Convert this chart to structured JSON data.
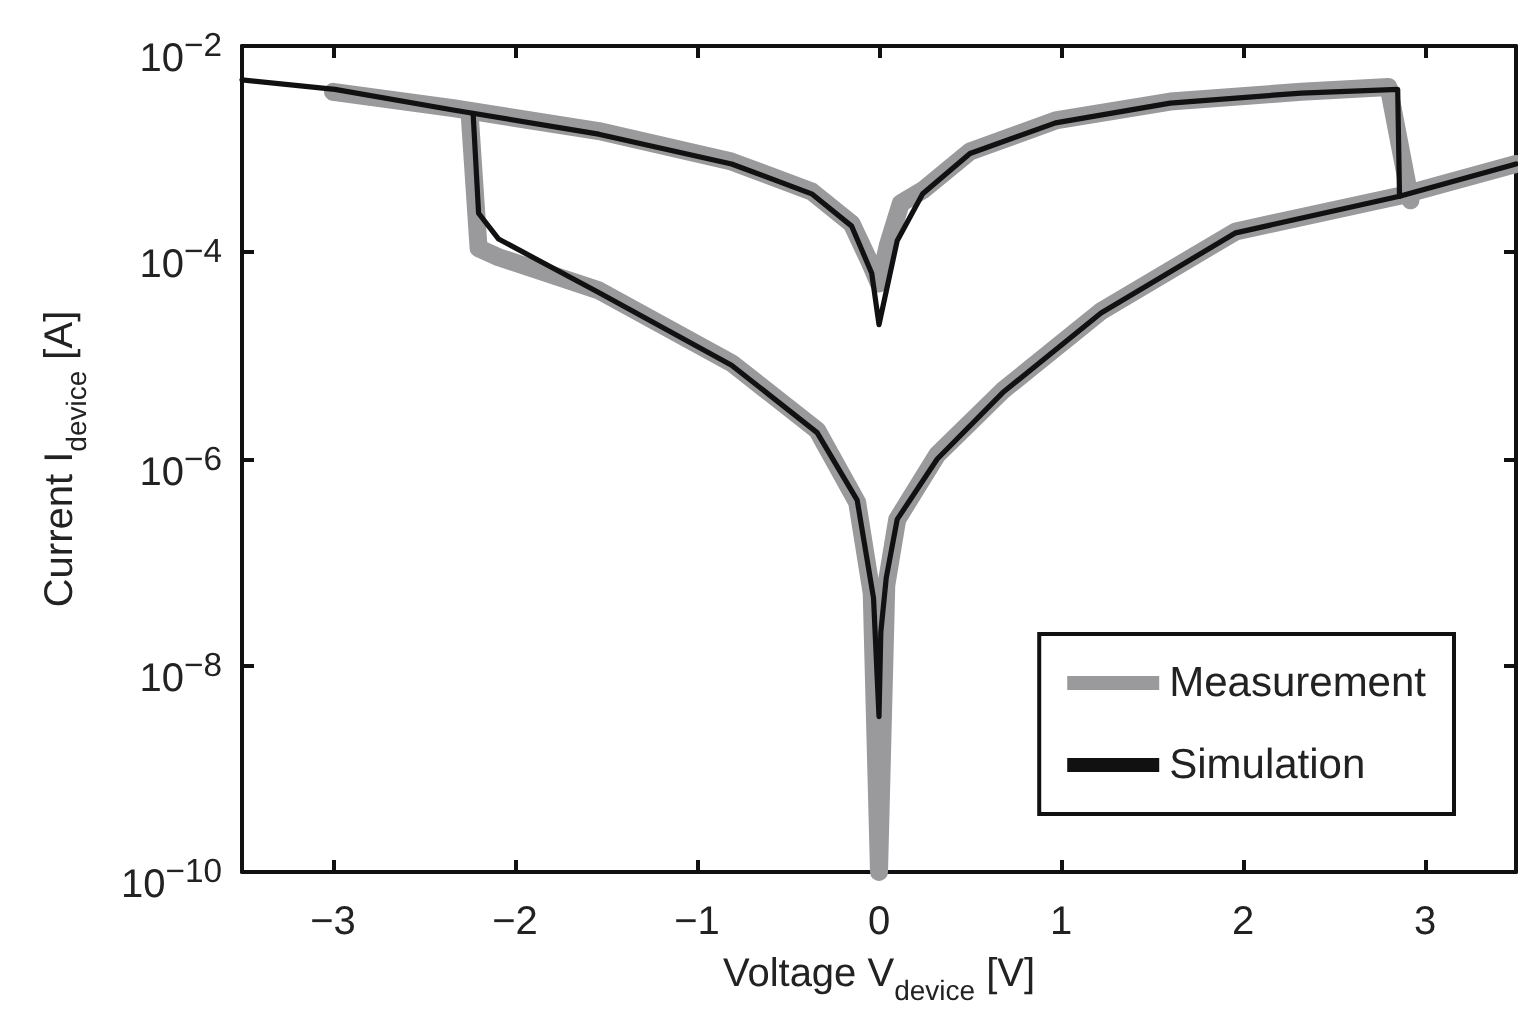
{
  "chart_data": {
    "type": "line",
    "xlabel": "Voltage V$_{device}$ [V]",
    "ylabel": "Current I$_{device}$ [A]",
    "xlim": [
      -3.5,
      3.5
    ],
    "xticks": [
      -3,
      -2,
      -1,
      0,
      1,
      2,
      3
    ],
    "ylim": [
      1e-10,
      0.01
    ],
    "yticks": [
      {
        "value": 1e-10,
        "label": "10$^{−10}$"
      },
      {
        "value": 1e-08,
        "label": "10$^{−8}$"
      },
      {
        "value": 1e-06,
        "label": "10$^{−6}$"
      },
      {
        "value": 0.0001,
        "label": "10$^{−4}$"
      },
      {
        "value": 0.01,
        "label": "10$^{−2}$"
      }
    ],
    "log": "y",
    "grid": false,
    "legend": "bottom right",
    "marker": "none",
    "line_style": "solid",
    "series": [
      {
        "name": "Measurement",
        "color": "#9a9a9c",
        "x": [
          -3.0,
          -2.34,
          -1.54,
          -0.81,
          -0.37,
          -0.15,
          -0.05,
          0,
          0.05,
          0.12,
          0.24,
          0.5,
          0.97,
          1.6,
          2.32,
          2.8,
          2.92
        ],
        "values": [
          0.0036,
          0.0025,
          0.0015,
          0.00076,
          0.00039,
          0.00019,
          8e-05,
          5e-05,
          0.00012,
          0.0003,
          0.0004,
          0.00095,
          0.0019,
          0.0029,
          0.0036,
          0.004,
          0.00032
        ]
      },
      {
        "color": "#9a9a9c",
        "x": [
          -2.25,
          -2.2,
          -2.09,
          -1.54,
          -0.81,
          -0.34,
          -0.12,
          -0.04,
          0,
          0.04,
          0.1,
          0.32,
          0.68,
          1.22,
          1.96,
          2.85,
          3.5
        ],
        "values": [
          0.0023,
          0.00011,
          9e-05,
          4.3e-05,
          8.5e-06,
          1.9e-06,
          3.8e-07,
          5e-08,
          1e-10,
          6e-08,
          2.6e-07,
          1.1e-06,
          4.6e-06,
          2.7e-05,
          0.00016,
          0.00035,
          0.00072
        ]
      },
      {
        "name": "Simulation",
        "color": "#111111",
        "x": [
          -3.5,
          -2.99,
          -2.34,
          -1.54,
          -0.81,
          -0.37,
          -0.15,
          -0.04,
          0,
          0.1,
          0.24,
          0.5,
          0.97,
          1.6,
          2.32,
          2.85,
          2.86
        ],
        "values": [
          0.0047,
          0.0038,
          0.0024,
          0.0014,
          0.00072,
          0.00037,
          0.00018,
          6.3e-05,
          2e-05,
          0.00013,
          0.00037,
          0.00091,
          0.0018,
          0.0028,
          0.0035,
          0.0038,
          0.00035
        ]
      },
      {
        "color": "#111111",
        "x": [
          -2.23,
          -2.2,
          -2.09,
          -1.54,
          -0.81,
          -0.34,
          -0.12,
          -0.03,
          0,
          0.01,
          0.04,
          0.1,
          0.32,
          0.68,
          1.22,
          1.96,
          2.86,
          3.5
        ],
        "values": [
          0.0022,
          0.00024,
          0.000135,
          4.1e-05,
          8.1e-06,
          1.8e-06,
          4e-07,
          4.5e-08,
          3.2e-09,
          2.1e-08,
          7.1e-08,
          2.6e-07,
          1e-06,
          4.4e-06,
          2.6e-05,
          0.000155,
          0.00035,
          0.00072
        ]
      }
    ]
  }
}
